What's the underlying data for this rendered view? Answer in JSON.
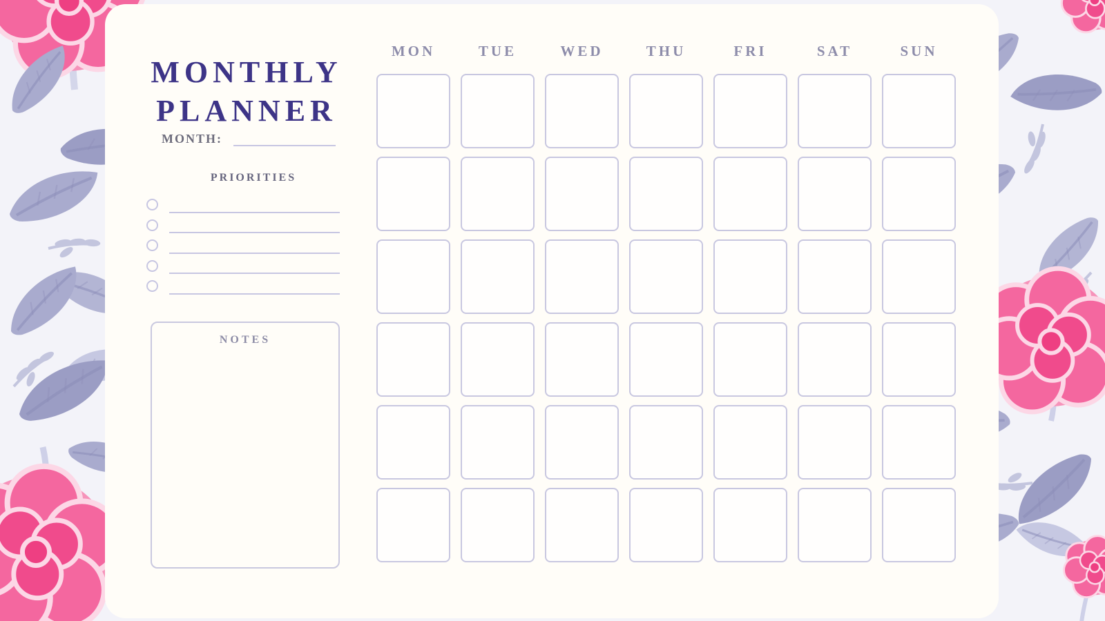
{
  "page": {
    "title_line1": "MONTHLY",
    "title_line2": "PLANNER"
  },
  "sidebar": {
    "month_label": "MONTH:",
    "month_value": "",
    "priorities": {
      "heading": "PRIORITIES",
      "items": [
        "",
        "",
        "",
        "",
        ""
      ]
    },
    "notes": {
      "heading": "NOTES",
      "value": ""
    }
  },
  "calendar": {
    "day_headers": [
      "MON",
      "TUE",
      "WED",
      "THU",
      "FRI",
      "SAT",
      "SUN"
    ],
    "weeks": 6,
    "cell_values": []
  },
  "decor": {
    "background_style": "floral pattern with pink roses and periwinkle leaves",
    "illustrations": [
      "rose-top-left-illustration",
      "rose-bottom-left-illustration",
      "rose-right-illustration",
      "rosebud-bottom-right-illustration",
      "leaf-foliage-illustration"
    ]
  },
  "colors": {
    "title_ink": "#3d3487",
    "day_header_ink": "#8d8caa",
    "label_ink": "#6d6c7c",
    "line_lavender": "#c7c6e2",
    "panel_background": "#fffdf8",
    "pattern_background": "#f3f3f9",
    "rose_pink_deep": "#ee3f82",
    "rose_pink_mid": "#f4679f",
    "rose_pink_pale": "#fcd7e6",
    "leaf_periwinkle": "#a9abce"
  }
}
